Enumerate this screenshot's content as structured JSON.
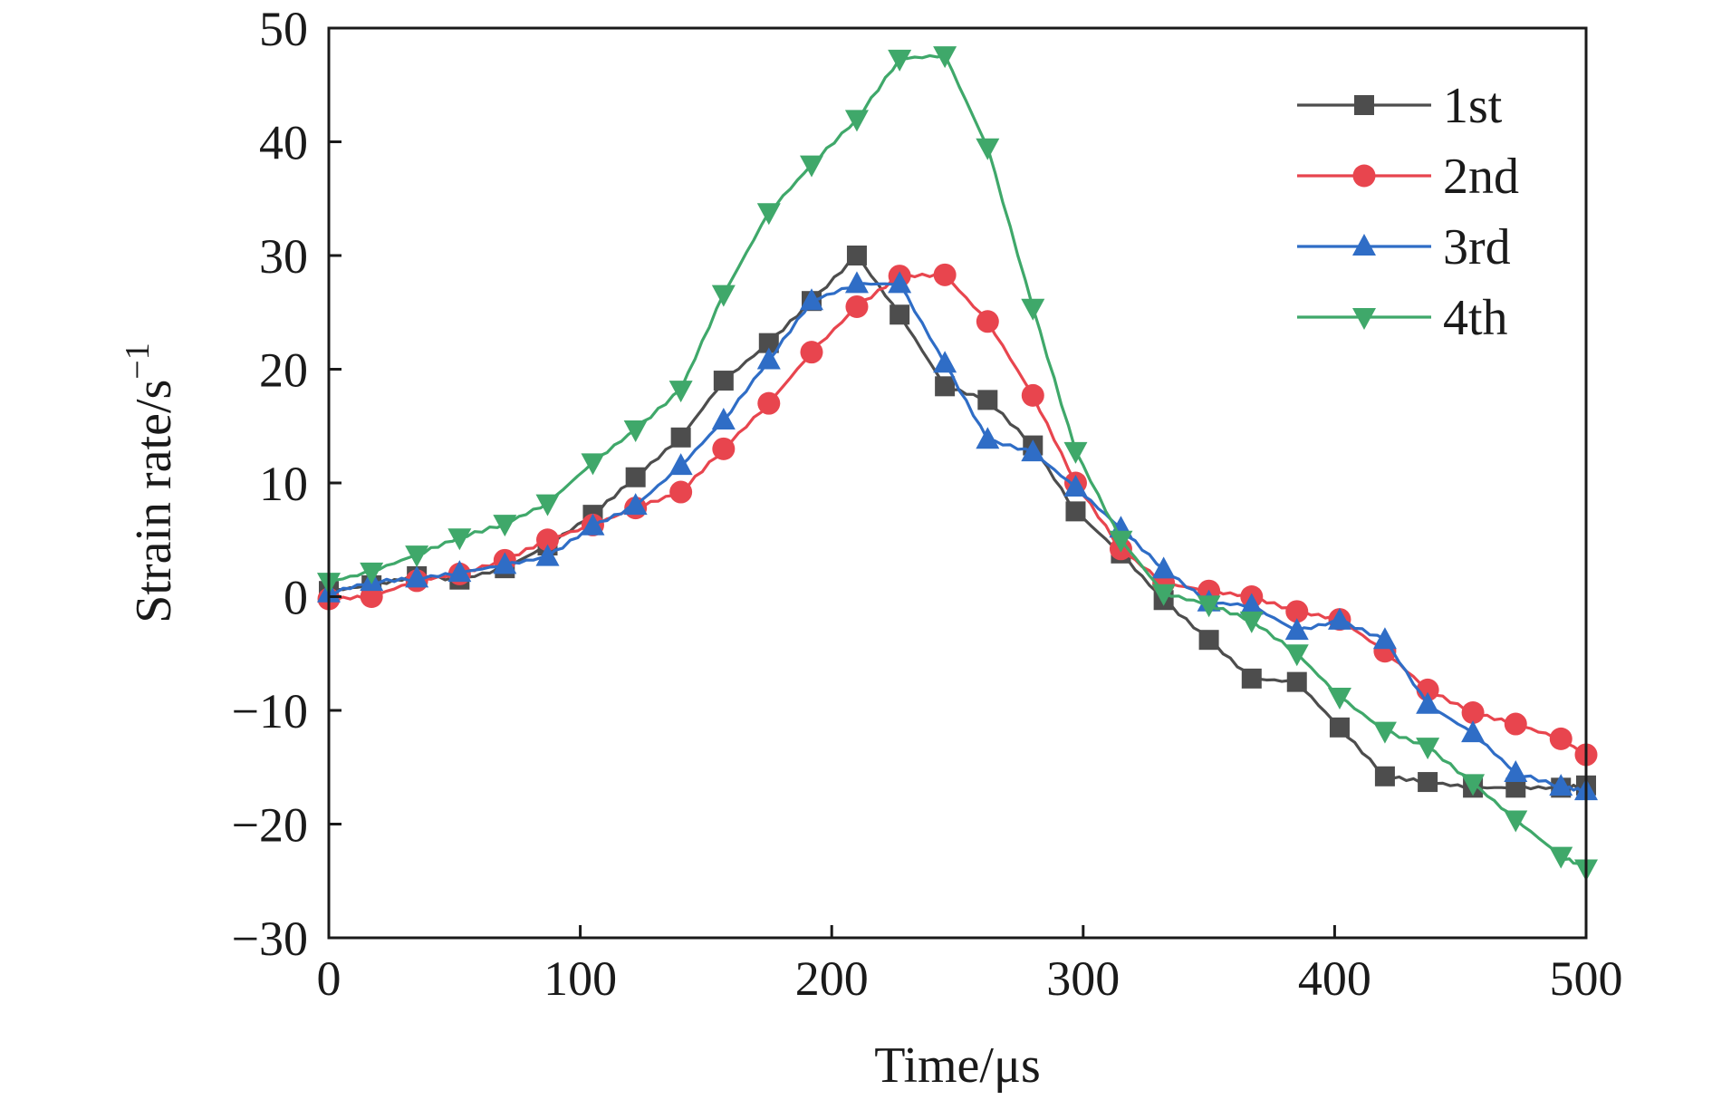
{
  "chart_data": {
    "type": "line",
    "xlabel": "Time/μs",
    "ylabel_main": "Strain rate/s",
    "ylabel_sup": "−1",
    "xlim": [
      0,
      500
    ],
    "ylim": [
      -30,
      50
    ],
    "xticks": [
      0,
      100,
      200,
      300,
      400,
      500
    ],
    "yticks": [
      -30,
      -20,
      -10,
      0,
      10,
      20,
      30,
      40,
      50
    ],
    "xtick_labels": [
      "0",
      "100",
      "200",
      "300",
      "400",
      "500"
    ],
    "ytick_labels": [
      "−30",
      "−20",
      "−10",
      "0",
      "10",
      "20",
      "30",
      "40",
      "50"
    ],
    "grid": false,
    "legend_position": "top-right",
    "series": [
      {
        "name": "1st",
        "color": "#4d4d4d",
        "marker": "square",
        "points": [
          [
            0,
            0.5
          ],
          [
            17,
            1.0
          ],
          [
            35,
            1.8
          ],
          [
            52,
            1.5
          ],
          [
            70,
            2.5
          ],
          [
            87,
            4.5
          ],
          [
            105,
            7.2
          ],
          [
            122,
            10.5
          ],
          [
            140,
            14.0
          ],
          [
            157,
            19.0
          ],
          [
            175,
            22.3
          ],
          [
            192,
            26.0
          ],
          [
            210,
            30.0
          ],
          [
            227,
            24.8
          ],
          [
            245,
            18.5
          ],
          [
            262,
            17.3
          ],
          [
            280,
            13.3
          ],
          [
            297,
            7.5
          ],
          [
            315,
            3.8
          ],
          [
            332,
            -0.3
          ],
          [
            350,
            -3.8
          ],
          [
            367,
            -7.2
          ],
          [
            385,
            -7.5
          ],
          [
            402,
            -11.5
          ],
          [
            420,
            -15.8
          ],
          [
            437,
            -16.3
          ],
          [
            455,
            -16.8
          ],
          [
            472,
            -16.8
          ],
          [
            490,
            -16.8
          ],
          [
            500,
            -16.6
          ]
        ]
      },
      {
        "name": "2nd",
        "color": "#e8454e",
        "marker": "circle",
        "points": [
          [
            0,
            -0.2
          ],
          [
            17,
            0.0
          ],
          [
            35,
            1.4
          ],
          [
            52,
            2.0
          ],
          [
            70,
            3.2
          ],
          [
            87,
            5.0
          ],
          [
            105,
            6.3
          ],
          [
            122,
            7.8
          ],
          [
            140,
            9.2
          ],
          [
            157,
            13.0
          ],
          [
            175,
            17.0
          ],
          [
            192,
            21.5
          ],
          [
            210,
            25.5
          ],
          [
            227,
            28.2
          ],
          [
            245,
            28.3
          ],
          [
            262,
            24.2
          ],
          [
            280,
            17.7
          ],
          [
            297,
            10.0
          ],
          [
            315,
            4.2
          ],
          [
            332,
            1.2
          ],
          [
            350,
            0.5
          ],
          [
            367,
            0.0
          ],
          [
            385,
            -1.3
          ],
          [
            402,
            -2.0
          ],
          [
            420,
            -4.8
          ],
          [
            437,
            -8.2
          ],
          [
            455,
            -10.2
          ],
          [
            472,
            -11.2
          ],
          [
            490,
            -12.5
          ],
          [
            500,
            -13.9
          ]
        ]
      },
      {
        "name": "3rd",
        "color": "#2f6dc6",
        "marker": "triangle-up",
        "points": [
          [
            0,
            0.3
          ],
          [
            17,
            1.3
          ],
          [
            35,
            1.6
          ],
          [
            52,
            2.1
          ],
          [
            70,
            2.8
          ],
          [
            87,
            3.5
          ],
          [
            105,
            6.2
          ],
          [
            122,
            8.0
          ],
          [
            140,
            11.5
          ],
          [
            157,
            15.5
          ],
          [
            175,
            20.8
          ],
          [
            192,
            26.0
          ],
          [
            210,
            27.5
          ],
          [
            227,
            27.5
          ],
          [
            245,
            20.5
          ],
          [
            262,
            13.8
          ],
          [
            280,
            12.7
          ],
          [
            297,
            9.6
          ],
          [
            315,
            6.0
          ],
          [
            332,
            2.4
          ],
          [
            350,
            -0.5
          ],
          [
            367,
            -0.8
          ],
          [
            385,
            -3.0
          ],
          [
            402,
            -2.1
          ],
          [
            420,
            -3.8
          ],
          [
            437,
            -9.5
          ],
          [
            455,
            -12.0
          ],
          [
            472,
            -15.5
          ],
          [
            490,
            -16.7
          ],
          [
            500,
            -17.1
          ]
        ]
      },
      {
        "name": "4th",
        "color": "#3fa86a",
        "marker": "triangle-down",
        "points": [
          [
            0,
            1.3
          ],
          [
            17,
            2.2
          ],
          [
            35,
            3.7
          ],
          [
            52,
            5.2
          ],
          [
            70,
            6.4
          ],
          [
            87,
            8.2
          ],
          [
            105,
            11.8
          ],
          [
            122,
            14.7
          ],
          [
            140,
            18.2
          ],
          [
            157,
            26.6
          ],
          [
            175,
            33.8
          ],
          [
            192,
            38.0
          ],
          [
            210,
            42.0
          ],
          [
            227,
            47.3
          ],
          [
            245,
            47.6
          ],
          [
            262,
            39.5
          ],
          [
            280,
            25.4
          ],
          [
            297,
            12.8
          ],
          [
            315,
            5.0
          ],
          [
            332,
            0.3
          ],
          [
            350,
            -0.7
          ],
          [
            367,
            -2.1
          ],
          [
            385,
            -5.0
          ],
          [
            402,
            -8.8
          ],
          [
            420,
            -11.8
          ],
          [
            437,
            -13.2
          ],
          [
            455,
            -16.4
          ],
          [
            472,
            -19.6
          ],
          [
            490,
            -22.8
          ],
          [
            500,
            -23.9
          ]
        ]
      }
    ]
  }
}
